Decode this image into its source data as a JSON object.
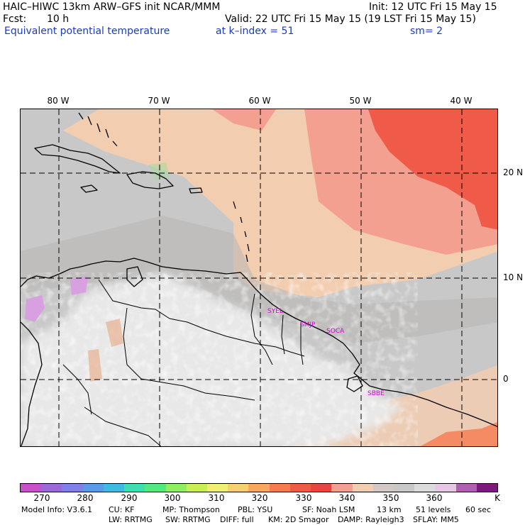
{
  "header": {
    "model": "HAIC–HIWC 13km ARW–GFS init   NCAR/MMM",
    "init": "Init: 12 UTC Fri 15 May 15",
    "fcst_label": "Fcst:",
    "fcst_value": "10 h",
    "valid": "Valid: 22 UTC Fri 15 May 15 (19 LST Fri 15 May 15)",
    "field": "Equivalent potential temperature",
    "level": "at k–index =  51",
    "smooth": "sm= 2"
  },
  "map": {
    "lon_labels": [
      "80 W",
      "70 W",
      "60 W",
      "50 W",
      "40 W"
    ],
    "lat_labels": [
      "20 N",
      "10 N",
      "0"
    ],
    "cities": [
      "SYEL",
      "SMJP",
      "SOCA",
      "SBBE"
    ]
  },
  "colorbar": {
    "colors": [
      "#c850c8",
      "#9a6ad8",
      "#8080e8",
      "#5a9ae6",
      "#3cbce0",
      "#3ce0b0",
      "#50ea80",
      "#90ee60",
      "#c8f050",
      "#f0f070",
      "#f8d070",
      "#f8a860",
      "#f87a50",
      "#f05a48",
      "#e84440",
      "#f4a090",
      "#f2cdb0",
      "#d2c8c4",
      "#c8c8c8",
      "#dcdcdc",
      "#e6c8e6",
      "#b060b0",
      "#7a1a7a"
    ],
    "tick_labels": [
      "270",
      "280",
      "290",
      "300",
      "310",
      "320",
      "330",
      "340",
      "350",
      "360",
      "K"
    ]
  },
  "footer": {
    "line1": [
      "Model Info: V3.6.1",
      "CU: KF",
      "MP: Thompson",
      "PBL: YSU",
      "SF: Noah LSM",
      "13 km",
      "51 levels",
      "60 sec"
    ],
    "line2": [
      "LW: RRTMG",
      "SW: RRTMG",
      "DIFF: full",
      "KM: 2D Smagor",
      "DAMP: Rayleigh3",
      "SFLAY: MM5"
    ]
  }
}
